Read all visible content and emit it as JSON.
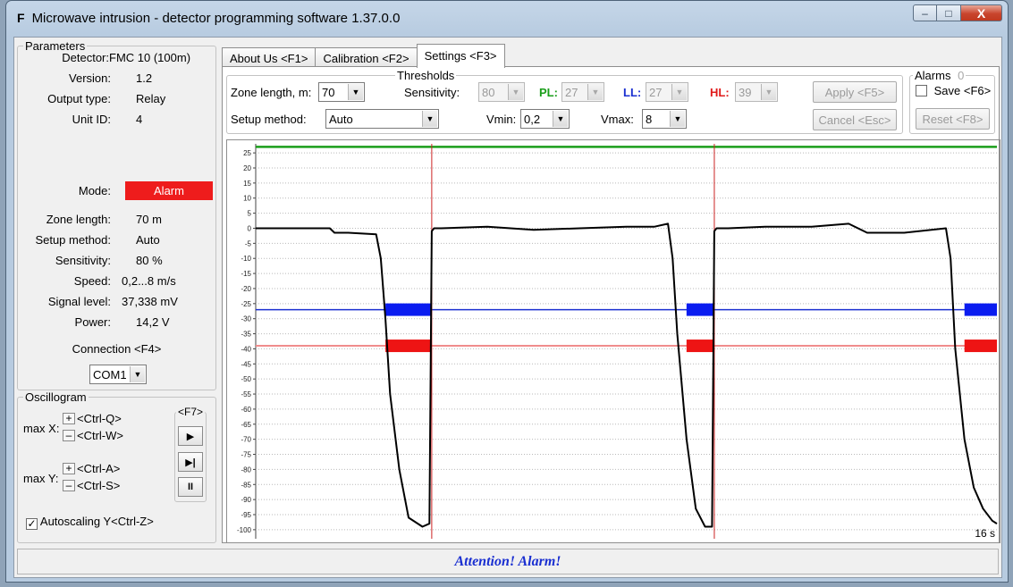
{
  "window": {
    "icon_letter": "F",
    "title": "Microwave intrusion - detector programming software 1.37.0.0",
    "minimize": "–",
    "maximize": "□",
    "close": "X"
  },
  "params": {
    "title": "Parameters",
    "rows_top": [
      {
        "label": "Detector:",
        "value": "FMC 10 (100m)"
      },
      {
        "label": "Version:",
        "value": "1.2"
      },
      {
        "label": "Output type:",
        "value": "Relay"
      },
      {
        "label": "Unit ID:",
        "value": "4"
      }
    ],
    "mode_label": "Mode:",
    "mode_value": "Alarm",
    "rows_bottom": [
      {
        "label": "Zone length:",
        "value": "70  m"
      },
      {
        "label": "Setup method:",
        "value": "Auto"
      },
      {
        "label": "Sensitivity:",
        "value": "80  %"
      },
      {
        "label": "Speed:",
        "value": "0,2...8  m/s"
      },
      {
        "label": "Signal level:",
        "value": "37,338  mV"
      },
      {
        "label": "Power:",
        "value": "14,2  V"
      }
    ],
    "connection_label": "Connection <F4>",
    "port": "COM1"
  },
  "oscillogram": {
    "title": "Oscillogram",
    "max_x_label": "max X:",
    "max_y_label": "max Y:",
    "plus": "+",
    "minus": "–",
    "ctrl_q": "<Ctrl-Q>",
    "ctrl_w": "<Ctrl-W>",
    "ctrl_a": "<Ctrl-A>",
    "ctrl_s": "<Ctrl-S>",
    "f7": "<F7>",
    "play": "▶",
    "step": "▶|",
    "pause": "II",
    "autoscale_check": "✓",
    "autoscale_label": "Autoscaling Y<Ctrl-Z>"
  },
  "tabs": [
    {
      "label": "About Us <F1>"
    },
    {
      "label": "Calibration <F2>"
    },
    {
      "label": "Settings <F3>",
      "active": true
    }
  ],
  "settings": {
    "thresholds_title": "Thresholds",
    "zone_length_label": "Zone length, m:",
    "zone_length": "70",
    "sensitivity_label": "Sensitivity:",
    "sensitivity": "80",
    "pl_label": "PL:",
    "pl": "27",
    "ll_label": "LL:",
    "ll": "27",
    "hl_label": "HL:",
    "hl": "39",
    "setup_method_label": "Setup method:",
    "setup_method": "Auto",
    "vmin_label": "Vmin:",
    "vmin": "0,2",
    "vmax_label": "Vmax:",
    "vmax": "8",
    "apply": "Apply <F5>",
    "cancel": "Cancel <Esc>",
    "alarms_title": "Alarms",
    "alarms_count": "0",
    "save_label": "Save <F6>",
    "reset": "Reset <F8>",
    "colors": {
      "pl": "#1a9e1a",
      "ll": "#1a2fd1",
      "hl": "#e01b1b"
    }
  },
  "status": {
    "message": "Attention! Alarm!"
  },
  "chart_data": {
    "type": "line",
    "ylim": [
      -103,
      28
    ],
    "xlim": [
      0,
      16
    ],
    "x_corner_label": "16 s",
    "y_ticks": [
      25,
      20,
      15,
      10,
      5,
      0,
      -5,
      -10,
      -15,
      -20,
      -25,
      -30,
      -35,
      -40,
      -45,
      -50,
      -55,
      -60,
      -65,
      -70,
      -75,
      -80,
      -85,
      -90,
      -95,
      -100
    ],
    "pl_level": 27,
    "ll_level": -27,
    "hl_level": -39,
    "alarm_markers_x": [
      3.8,
      9.9
    ],
    "ll_segments": [
      [
        2.8,
        3.8
      ],
      [
        9.3,
        9.9
      ],
      [
        15.3,
        16.0
      ]
    ],
    "hl_segments": [
      [
        2.8,
        3.8
      ],
      [
        9.3,
        9.9
      ],
      [
        15.3,
        16.0
      ]
    ],
    "series": [
      {
        "x": [
          0,
          1.0,
          1.6,
          1.7,
          2.0,
          2.6,
          2.7,
          2.8,
          2.9,
          3.1,
          3.3,
          3.6,
          3.75,
          3.8,
          3.85,
          4.0,
          5.0,
          6.0,
          7.0,
          8.0,
          8.6,
          8.9,
          9.0,
          9.1,
          9.3,
          9.5,
          9.7,
          9.85,
          9.9,
          9.95,
          10.2,
          11.0,
          12.0,
          12.8,
          13.2,
          14.0,
          14.9,
          15.0,
          15.1,
          15.3,
          15.5,
          15.7,
          15.9,
          16.0
        ],
        "y": [
          0,
          0,
          0,
          -1.5,
          -1.5,
          -2,
          -10,
          -30,
          -55,
          -80,
          -96,
          -99,
          -98,
          -1,
          0,
          0,
          0.5,
          -0.5,
          0,
          0.5,
          0.5,
          1.5,
          -10,
          -35,
          -70,
          -93,
          -99,
          -99,
          -1,
          0,
          0,
          0.5,
          0.5,
          1.5,
          -1.5,
          -1.5,
          0,
          -10,
          -40,
          -70,
          -86,
          -93,
          -97,
          -98
        ]
      }
    ]
  }
}
